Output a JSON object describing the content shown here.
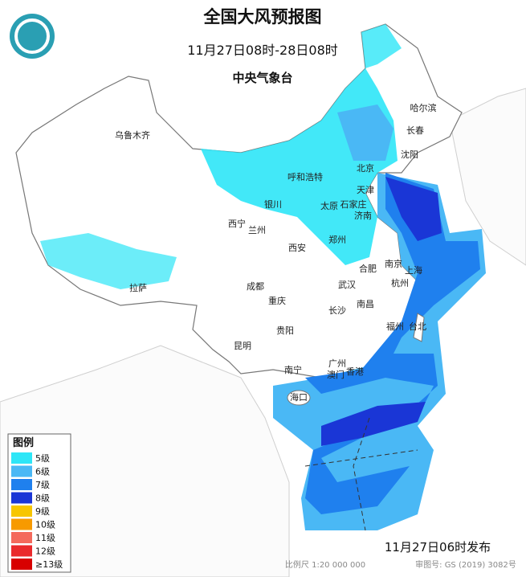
{
  "header": {
    "title": "全国大风预报图",
    "subtitle": "11月27日08时-28日08时",
    "agency": "中央气象台"
  },
  "legend": {
    "title": "图例",
    "items": [
      {
        "label": "5级",
        "color": "#2ee6f7"
      },
      {
        "label": "6级",
        "color": "#4ab8f5"
      },
      {
        "label": "7级",
        "color": "#1f80ee"
      },
      {
        "label": "8级",
        "color": "#1a36d6"
      },
      {
        "label": "9级",
        "color": "#f7c600"
      },
      {
        "label": "10级",
        "color": "#f79a00"
      },
      {
        "label": "11级",
        "color": "#f46a5c"
      },
      {
        "label": "12级",
        "color": "#ea2a2c"
      },
      {
        "label": "≥13级",
        "color": "#d80000"
      }
    ]
  },
  "cities": [
    "乌鲁木齐",
    "哈尔滨",
    "长春",
    "沈阳",
    "北京",
    "天津",
    "呼和浩特",
    "银川",
    "太原",
    "石家庄",
    "济南",
    "西宁",
    "兰州",
    "郑州",
    "西安",
    "合肥",
    "南京",
    "上海",
    "杭州",
    "成都",
    "武汉",
    "拉萨",
    "重庆",
    "长沙",
    "南昌",
    "福州",
    "台北",
    "贵阳",
    "昆明",
    "广州",
    "南宁",
    "澳门",
    "香港",
    "海口"
  ],
  "footer": {
    "issued": "11月27日06时发布",
    "scale": "比例尺 1:20 000 000",
    "review": "审图号: GS (2019) 3082号"
  }
}
